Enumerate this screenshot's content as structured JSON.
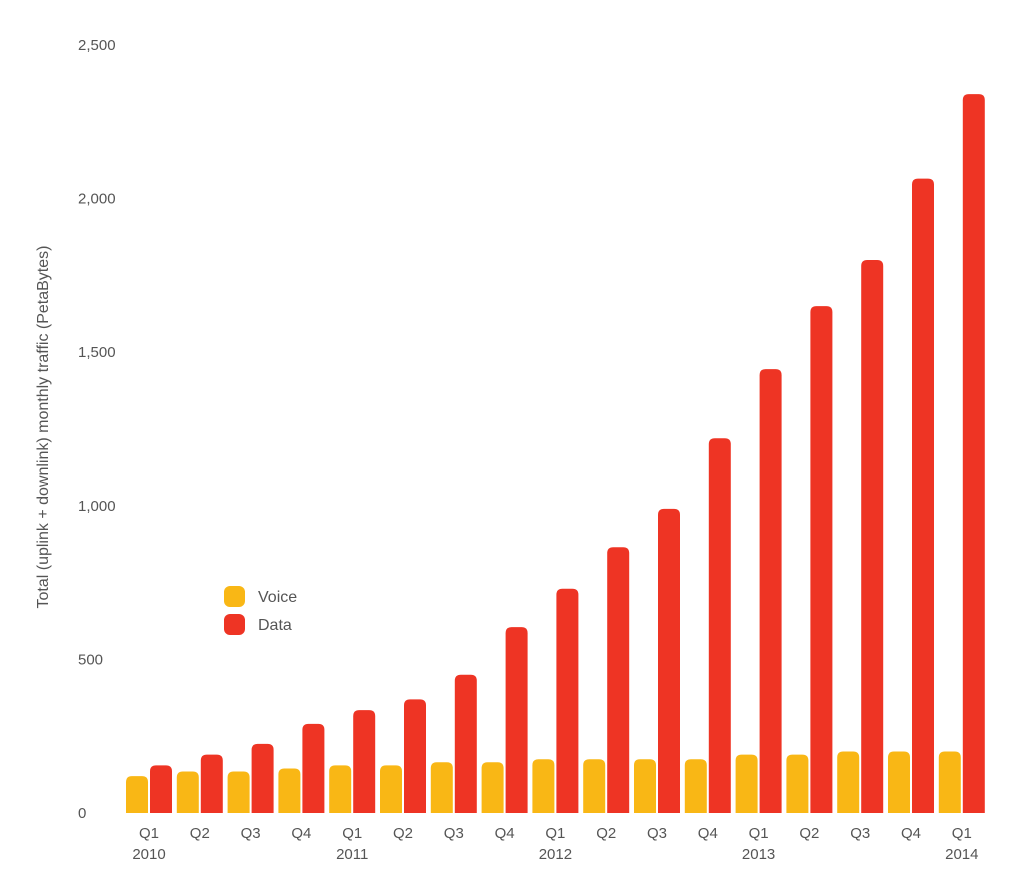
{
  "chart_data": {
    "type": "bar",
    "title": "",
    "xlabel": "",
    "ylabel": "Total (uplink + downlink) monthly traffic (PetaBytes)",
    "ylim": [
      0,
      2500
    ],
    "yticks": [
      0,
      500,
      1000,
      1500,
      2000,
      2500
    ],
    "ytick_labels": [
      "0",
      "500",
      "1,000",
      "1,500",
      "2,000",
      "2,500"
    ],
    "grid": false,
    "legend_position": "middle-left",
    "categories": [
      "Q1",
      "Q2",
      "Q3",
      "Q4",
      "Q1",
      "Q2",
      "Q3",
      "Q4",
      "Q1",
      "Q2",
      "Q3",
      "Q4",
      "Q1",
      "Q2",
      "Q3",
      "Q4",
      "Q1"
    ],
    "year_labels": [
      "2010",
      "",
      "",
      "",
      "2011",
      "",
      "",
      "",
      "2012",
      "",
      "",
      "",
      "2013",
      "",
      "",
      "",
      "2014"
    ],
    "series": [
      {
        "name": "Voice",
        "color": "#F9B715",
        "values": [
          120,
          135,
          135,
          145,
          155,
          155,
          165,
          165,
          175,
          175,
          175,
          175,
          190,
          190,
          200,
          200,
          200
        ]
      },
      {
        "name": "Data",
        "color": "#EE3424",
        "values": [
          155,
          190,
          225,
          290,
          335,
          370,
          450,
          605,
          730,
          865,
          990,
          1220,
          1445,
          1650,
          1800,
          2065,
          2340
        ]
      }
    ]
  }
}
